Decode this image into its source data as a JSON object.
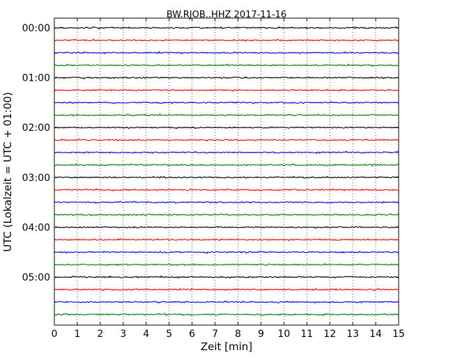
{
  "chart_data": {
    "type": "line",
    "title": "BW.RJOB..HHZ 2017-11-16",
    "xlabel": "Zeit  [min]",
    "ylabel": "UTC (Lokalzeit = UTC + 01:00)",
    "xlim": [
      0,
      15
    ],
    "x_ticks": [
      "0",
      "1",
      "2",
      "3",
      "4",
      "5",
      "6",
      "7",
      "8",
      "9",
      "10",
      "11",
      "12",
      "13",
      "14",
      "15"
    ],
    "y_ticks": [
      "00:00",
      "01:00",
      "02:00",
      "03:00",
      "04:00",
      "05:00"
    ],
    "trace_minutes": 15,
    "trace_count": 24,
    "grid": "vertical dotted lines at each minute",
    "colors": [
      "#000000",
      "#ff0000",
      "#0000ff",
      "#008000"
    ],
    "series": [
      {
        "start": "00:00",
        "color": "#000000"
      },
      {
        "start": "00:15",
        "color": "#ff0000"
      },
      {
        "start": "00:30",
        "color": "#0000ff"
      },
      {
        "start": "00:45",
        "color": "#008000"
      },
      {
        "start": "01:00",
        "color": "#000000"
      },
      {
        "start": "01:15",
        "color": "#ff0000"
      },
      {
        "start": "01:30",
        "color": "#0000ff"
      },
      {
        "start": "01:45",
        "color": "#008000"
      },
      {
        "start": "02:00",
        "color": "#000000"
      },
      {
        "start": "02:15",
        "color": "#ff0000"
      },
      {
        "start": "02:30",
        "color": "#0000ff"
      },
      {
        "start": "02:45",
        "color": "#008000"
      },
      {
        "start": "03:00",
        "color": "#000000"
      },
      {
        "start": "03:15",
        "color": "#ff0000"
      },
      {
        "start": "03:30",
        "color": "#0000ff"
      },
      {
        "start": "03:45",
        "color": "#008000"
      },
      {
        "start": "04:00",
        "color": "#000000"
      },
      {
        "start": "04:15",
        "color": "#ff0000"
      },
      {
        "start": "04:30",
        "color": "#0000ff"
      },
      {
        "start": "04:45",
        "color": "#008000"
      },
      {
        "start": "05:00",
        "color": "#000000"
      },
      {
        "start": "05:15",
        "color": "#ff0000"
      },
      {
        "start": "05:30",
        "color": "#0000ff"
      },
      {
        "start": "05:45",
        "color": "#008000"
      }
    ]
  }
}
